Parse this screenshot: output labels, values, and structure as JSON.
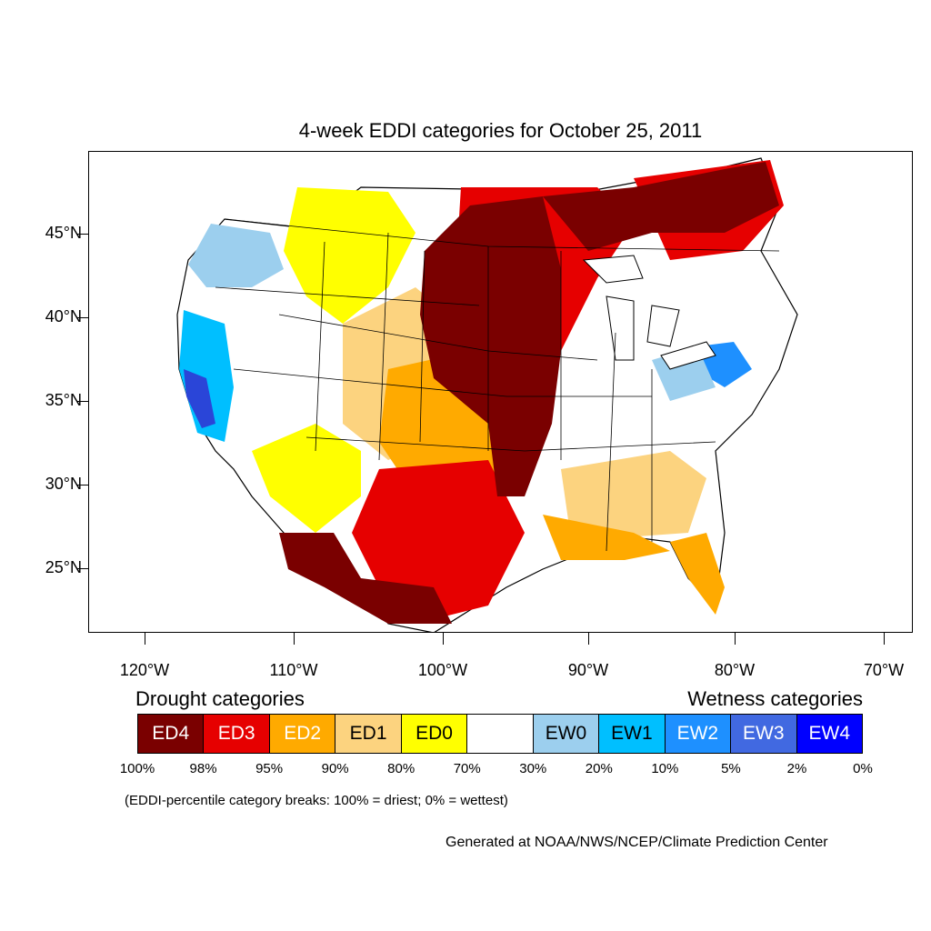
{
  "title": "4-week EDDI categories for October 25, 2011",
  "axes": {
    "y_ticks": [
      "45°N",
      "40°N",
      "35°N",
      "30°N",
      "25°N"
    ],
    "x_ticks": [
      "120°W",
      "110°W",
      "100°W",
      "90°W",
      "80°W",
      "70°W"
    ]
  },
  "legend": {
    "drought_heading": "Drought categories",
    "wetness_heading": "Wetness categories",
    "cells": [
      {
        "label": "ED4",
        "color": "#7a0000",
        "text_color": "#ffffff"
      },
      {
        "label": "ED3",
        "color": "#e60000",
        "text_color": "#ffffff"
      },
      {
        "label": "ED2",
        "color": "#ffaa00",
        "text_color": "#ffffff"
      },
      {
        "label": "ED1",
        "color": "#fcd37f",
        "text_color": "#000000"
      },
      {
        "label": "ED0",
        "color": "#ffff00",
        "text_color": "#000000"
      },
      {
        "label": "",
        "color": "#ffffff",
        "text_color": "#000000"
      },
      {
        "label": "EW0",
        "color": "#9ccfee",
        "text_color": "#000000"
      },
      {
        "label": "EW1",
        "color": "#00bfff",
        "text_color": "#000000"
      },
      {
        "label": "EW2",
        "color": "#1e90ff",
        "text_color": "#ffffff"
      },
      {
        "label": "EW3",
        "color": "#4169e1",
        "text_color": "#ffffff"
      },
      {
        "label": "EW4",
        "color": "#0000ff",
        "text_color": "#ffffff"
      }
    ],
    "percentiles": [
      "100%",
      "98%",
      "95%",
      "90%",
      "80%",
      "70%",
      "30%",
      "20%",
      "10%",
      "5%",
      "2%",
      "0%"
    ]
  },
  "note": "(EDDI-percentile category breaks: 100% = driest; 0% = wettest)",
  "credit": "Generated at NOAA/NWS/NCEP/Climate Prediction Center"
}
